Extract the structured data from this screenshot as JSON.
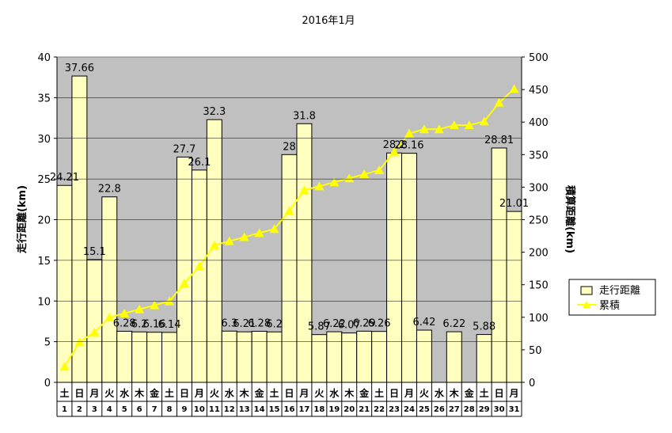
{
  "chart_data": {
    "type": "bar",
    "title": "2016年1月",
    "ylabel": "走行距離(km)",
    "y2label": "積算距離(km)",
    "ylim": [
      0,
      40
    ],
    "y2lim": [
      0,
      500
    ],
    "yticks": [
      "0",
      "5",
      "10",
      "15",
      "20",
      "25",
      "30",
      "35",
      "40"
    ],
    "y2ticks": [
      "0",
      "50",
      "100",
      "150",
      "200",
      "250",
      "300",
      "350",
      "400",
      "450",
      "500"
    ],
    "weekdays": [
      "土",
      "日",
      "月",
      "火",
      "水",
      "木",
      "金",
      "土",
      "日",
      "月",
      "火",
      "水",
      "木",
      "金",
      "土",
      "日",
      "月",
      "火",
      "水",
      "木",
      "金",
      "土",
      "日",
      "月",
      "火",
      "水",
      "木",
      "金",
      "土",
      "日",
      "月"
    ],
    "days": [
      "1",
      "2",
      "3",
      "4",
      "5",
      "6",
      "7",
      "8",
      "9",
      "10",
      "11",
      "12",
      "13",
      "14",
      "15",
      "16",
      "17",
      "18",
      "19",
      "20",
      "21",
      "22",
      "23",
      "24",
      "25",
      "26",
      "27",
      "28",
      "29",
      "30",
      "31"
    ],
    "series": [
      {
        "name": "走行距離",
        "axis": "left",
        "color": "#ffffc0",
        "values": [
          24.21,
          37.66,
          15.1,
          22.8,
          6.28,
          6.2,
          6.16,
          6.14,
          27.7,
          26.1,
          32.3,
          6.3,
          6.21,
          6.28,
          6.2,
          28,
          31.8,
          5.87,
          6.22,
          6.07,
          6.29,
          6.26,
          28.2,
          28.16,
          6.42,
          0,
          6.22,
          0,
          5.88,
          28.81,
          21.01
        ],
        "labels": [
          "24.21",
          "37.66",
          "15.1",
          "22.8",
          "6.28",
          "6.2",
          "6.16",
          "6.14",
          "27.7",
          "26.1",
          "32.3",
          "6.3",
          "6.21",
          "6.28",
          "6.2",
          "28",
          "31.8",
          "5.87",
          "6.22",
          "6.07",
          "6.29",
          "6.26",
          "28.2",
          "28.16",
          "6.42",
          "",
          "6.22",
          "",
          "5.88",
          "28.81",
          "21.01"
        ]
      },
      {
        "name": "累積",
        "axis": "right",
        "color": "#ffff00",
        "values": [
          24.21,
          61.87,
          76.97,
          99.77,
          106.05,
          112.25,
          118.41,
          124.55,
          152.25,
          178.35,
          210.65,
          216.95,
          223.16,
          229.44,
          235.64,
          263.64,
          295.44,
          301.31,
          307.53,
          313.6,
          319.89,
          326.15,
          354.35,
          382.51,
          388.93,
          388.93,
          395.15,
          395.15,
          401.03,
          429.84,
          450.85
        ]
      }
    ],
    "legend": {
      "position": "right"
    }
  }
}
